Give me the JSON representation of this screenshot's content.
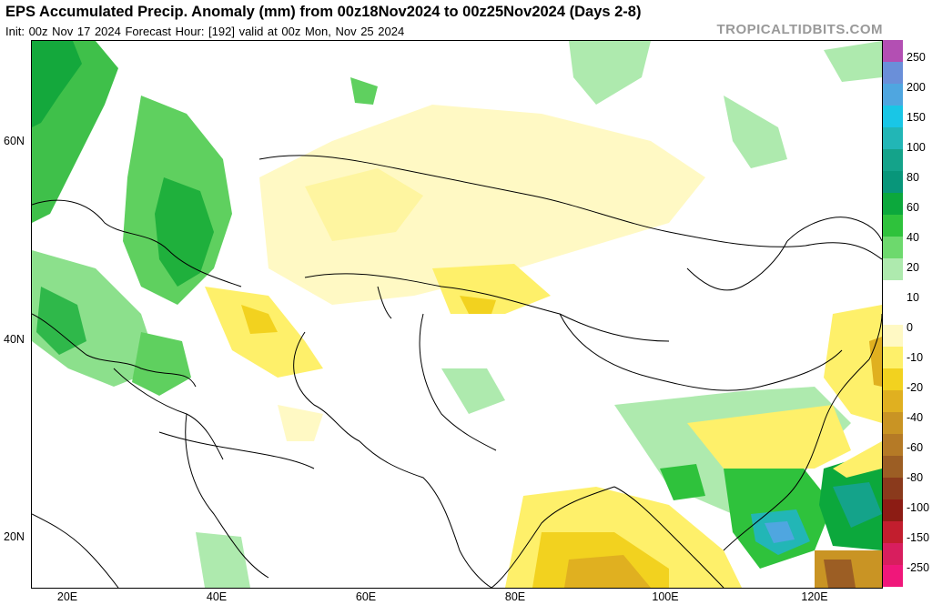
{
  "header": {
    "title": "EPS Accumulated Precip. Anomaly (mm) from 00z18Nov2024 to 00z25Nov2024 (Days 2-8)",
    "subtitle": "Init: 00z Nov 17 2024   Forecast Hour: [192]   valid at 00z Mon, Nov 25 2024",
    "brand": "TROPICALTIDBITS.COM"
  },
  "map": {
    "lat_labels": [
      "60N",
      "40N",
      "20N"
    ],
    "lon_labels": [
      "20E",
      "40E",
      "60E",
      "80E",
      "100E",
      "120E"
    ]
  },
  "colorbar": {
    "labels": [
      "250",
      "200",
      "150",
      "100",
      "80",
      "60",
      "40",
      "20",
      "10",
      "0",
      "-10",
      "-20",
      "-40",
      "-60",
      "-80",
      "-100",
      "-150",
      "-250"
    ],
    "colors": [
      "#b34fb3",
      "#6a8fd9",
      "#4fa6e0",
      "#19c6e6",
      "#22b6b6",
      "#14a38a",
      "#08967a",
      "#0ca83c",
      "#2fc23c",
      "#6dd96d",
      "#aeeaae",
      "#ffffff",
      "#ffffff",
      "#fff9c4",
      "#fef06a",
      "#f2d21f",
      "#e0b020",
      "#c99424",
      "#b57a26",
      "#9c5e24",
      "#8a3a1c",
      "#8c1c14",
      "#c21e2e",
      "#d81e5e",
      "#f0177a"
    ]
  }
}
